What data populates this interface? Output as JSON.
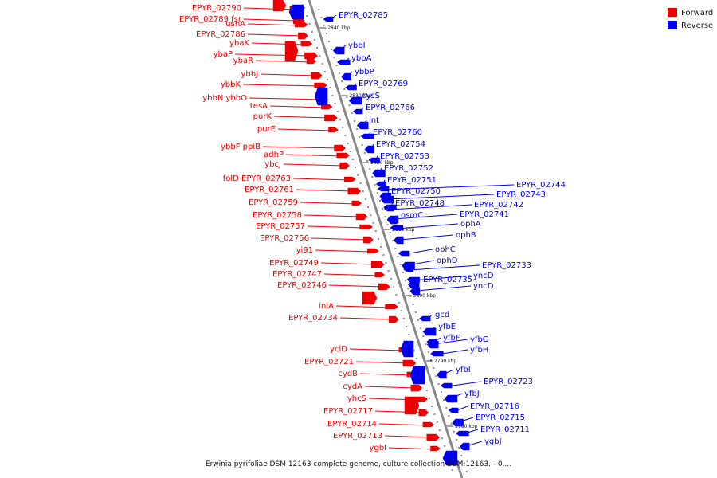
{
  "caption": "Erwinia pyrifoliae DSM 12163 complete genome, culture collection DSM:12163. - 0....",
  "legend": [
    {
      "label": "Forward",
      "color": "#ee0000"
    },
    {
      "label": "Reverse",
      "color": "#0000ee"
    }
  ],
  "colors": {
    "forward": "#ee0000",
    "reverse": "#0000ee",
    "axis": "#888888"
  },
  "ticks": [
    "2840 kbp",
    "2830 kbp",
    "2820 kbp",
    "2810 kbp",
    "2800 kbp",
    "2790 kbp",
    "2780 kbp"
  ],
  "forward_genes": [
    "EPYR_02790",
    "EPYR_02789 fsr",
    "ushA",
    "EPYR_02786",
    "ybaK",
    "ybaP",
    "ybaR",
    "ybbJ",
    "ybbK",
    "ybbN ybbO",
    "tesA",
    "purK",
    "purE",
    "ybbF ppiB",
    "adhP",
    "ybcJ",
    "folD EPYR_02763",
    "EPYR_02761",
    "EPYR_02759",
    "EPYR_02758",
    "EPYR_02757",
    "EPYR_02756",
    "yi91",
    "EPYR_02749",
    "EPYR_02747",
    "EPYR_02746",
    "inlA",
    "EPYR_02734",
    "yclD",
    "EPYR_02721",
    "cydB",
    "cydA",
    "yhcS",
    "EPYR_02717",
    "EPYR_02714",
    "EPYR_02713",
    "ygbI"
  ],
  "reverse_genes": [
    "EPYR_02785",
    "ybbI",
    "ybbA",
    "ybbP",
    "EPYR_02769",
    "cysS",
    "EPYR_02766",
    "int",
    "EPYR_02760",
    "EPYR_02754",
    "EPYR_02753",
    "EPYR_02752",
    "EPYR_02751",
    "EPYR_02750",
    "EPYR_02748",
    "osmC",
    "EPYR_02744",
    "EPYR_02743",
    "EPYR_02742",
    "EPYR_02741",
    "ophA",
    "ophB",
    "ophC",
    "ophD",
    "EPYR_02733",
    "EPYR_02735",
    "yncD",
    "yncD",
    "gcd",
    "yfbE",
    "yfbF",
    "yfbG",
    "yfbH",
    "yfbI",
    "EPYR_02723",
    "yfbJ",
    "EPYR_02716",
    "EPYR_02715",
    "EPYR_02711",
    "ygbJ"
  ]
}
